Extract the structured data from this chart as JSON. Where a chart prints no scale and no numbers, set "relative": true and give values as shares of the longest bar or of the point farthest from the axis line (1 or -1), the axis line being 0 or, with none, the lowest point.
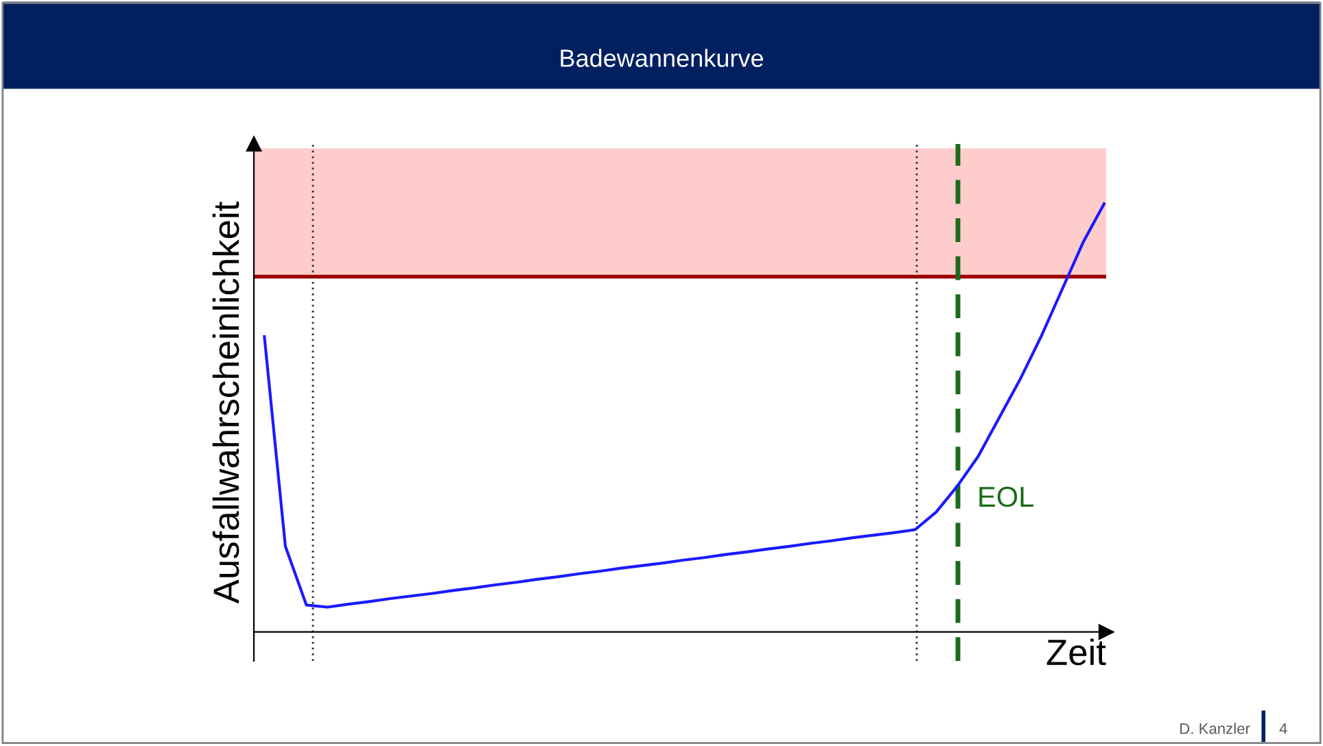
{
  "chart_data": {
    "type": "line",
    "title": "Badewannenkurve",
    "xlabel": "Zeit",
    "ylabel": "Ausfallwahrscheinlichkeit",
    "relative": true,
    "marker": "none",
    "line_style": "solid",
    "categories": [
      null,
      null,
      null,
      null,
      null,
      null,
      null,
      null,
      null,
      null,
      null,
      null,
      null,
      null,
      null,
      null,
      null,
      null,
      null,
      null,
      null,
      null,
      null,
      null,
      null,
      null,
      null,
      null,
      null,
      null,
      null,
      null,
      null,
      null,
      null,
      null,
      null,
      null,
      null,
      null,
      null
    ],
    "series": [
      {
        "color": "#1a1aff",
        "values": [
          0.69,
          0.2,
          0.063,
          0.058,
          0.065,
          0.071,
          0.078,
          0.084,
          0.09,
          0.097,
          0.103,
          0.11,
          0.116,
          0.123,
          0.129,
          0.136,
          0.142,
          0.149,
          0.155,
          0.161,
          0.168,
          0.174,
          0.181,
          0.187,
          0.194,
          0.2,
          0.207,
          0.213,
          0.22,
          0.226,
          0.232,
          0.239,
          0.28,
          0.34,
          0.41,
          0.5,
          0.59,
          0.69,
          0.8,
          0.91,
          1.0
        ]
      }
    ],
    "bands": [
      {
        "axis": "y",
        "from": 0.83,
        "to": 1.13,
        "color": "#ffcccc"
      }
    ],
    "ref_lines": [
      {
        "axis": "y",
        "value": 0.83,
        "color": "#a00000",
        "line_style": "solid"
      }
    ],
    "annotations": [
      "EOL",
      "D. Kanzler",
      "4"
    ]
  }
}
